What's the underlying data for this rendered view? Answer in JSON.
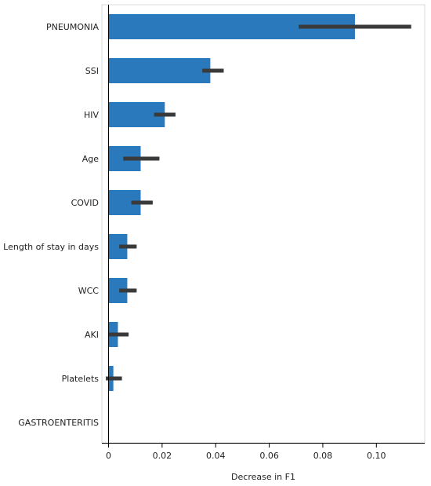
{
  "chart_data": {
    "type": "bar",
    "orientation": "horizontal",
    "categories": [
      "PNEUMONIA",
      "SSI",
      "HIV",
      "Age",
      "COVID",
      "Length of stay in days",
      "WCC",
      "AKI",
      "Platelets",
      "GASTROENTERITIS"
    ],
    "values": [
      0.092,
      0.038,
      0.021,
      0.012,
      0.012,
      0.007,
      0.007,
      0.0035,
      0.0018,
      0.0
    ],
    "error_low": [
      0.071,
      0.035,
      0.017,
      0.0055,
      0.0085,
      0.004,
      0.004,
      0.0,
      -0.001,
      null
    ],
    "error_high": [
      0.113,
      0.043,
      0.025,
      0.019,
      0.0165,
      0.0105,
      0.0105,
      0.0075,
      0.005,
      null
    ],
    "xlabel": "Decrease in F1",
    "ylabel": "",
    "xlim": [
      -0.002,
      0.119
    ],
    "xticks": [
      0,
      0.02,
      0.04,
      0.06,
      0.08,
      0.1
    ],
    "xtick_labels": [
      "0",
      "0.02",
      "0.04",
      "0.06",
      "0.08",
      "0.10"
    ],
    "grid": false,
    "colors": {
      "bar": "#2a79bd",
      "error": "#3a3a3a",
      "axis": "#000000"
    }
  }
}
